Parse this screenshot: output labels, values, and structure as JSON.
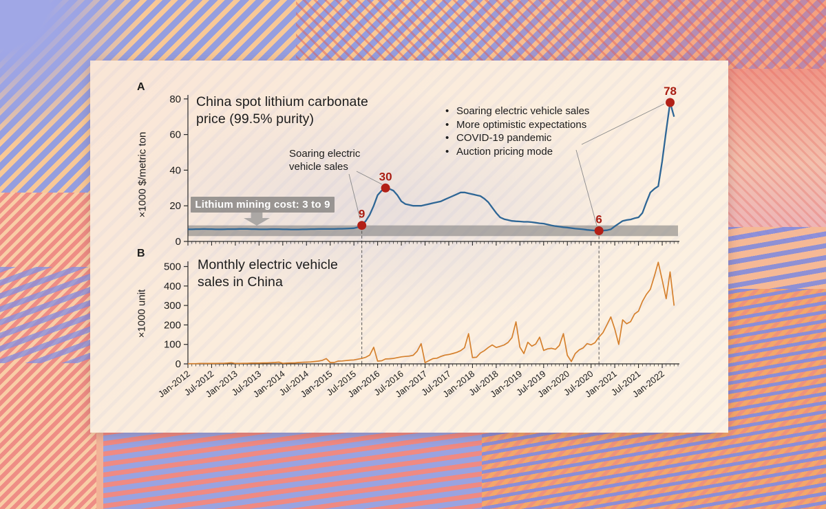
{
  "panel": {
    "label_a": "A",
    "label_b": "B"
  },
  "colors": {
    "price_line": "#2e6695",
    "ev_line": "#d5802d",
    "marker": "#b22017",
    "marker_label": "#a91d12",
    "band_fill": "rgba(120,120,120,0.55)",
    "axis": "#2a2a2a",
    "dashed_link": "#555555",
    "leader_line": "#8a8a8a",
    "text": "#1c1c1c"
  },
  "chart_data": [
    {
      "id": "lithium-price",
      "type": "line",
      "title": "China spot lithium carbonate price (99.5% purity)",
      "ylabel": "×1000 $/metric ton",
      "ylim": [
        0,
        80
      ],
      "yticks": [
        0,
        20,
        40,
        60,
        80
      ],
      "x_start": "Jan-2012",
      "x_end": "Apr-2022",
      "x_unit": "month",
      "values": [
        6.8,
        6.8,
        6.9,
        6.9,
        7.0,
        6.9,
        6.9,
        6.8,
        6.8,
        6.8,
        6.9,
        6.9,
        6.9,
        7.0,
        7.0,
        7.0,
        6.9,
        6.9,
        6.8,
        6.8,
        6.8,
        6.9,
        6.9,
        6.9,
        6.8,
        6.8,
        6.7,
        6.7,
        6.7,
        6.8,
        6.8,
        6.9,
        6.9,
        7.0,
        7.0,
        7.0,
        7.0,
        7.0,
        7.1,
        7.1,
        7.2,
        7.3,
        7.4,
        8.0,
        9.0,
        11.5,
        15.0,
        20.0,
        26.0,
        28.5,
        30.0,
        29.5,
        28.5,
        26.0,
        22.5,
        21.0,
        20.5,
        20.0,
        20.0,
        20.0,
        20.5,
        21.0,
        21.5,
        22.0,
        22.5,
        23.5,
        24.5,
        25.5,
        26.5,
        27.5,
        27.5,
        27.0,
        26.5,
        26.0,
        25.5,
        24.0,
        22.0,
        19.0,
        16.0,
        13.5,
        12.5,
        12.0,
        11.5,
        11.3,
        11.2,
        11.0,
        11.0,
        10.8,
        10.5,
        10.2,
        10.0,
        9.5,
        9.0,
        8.6,
        8.3,
        8.0,
        7.8,
        7.5,
        7.2,
        7.0,
        6.8,
        6.5,
        6.3,
        6.1,
        6.0,
        6.1,
        6.3,
        6.8,
        8.5,
        10.0,
        11.5,
        12.0,
        12.3,
        13.0,
        13.5,
        16.0,
        22.0,
        27.5,
        29.5,
        31.0,
        45.0,
        62.0,
        78.0,
        70.0
      ],
      "annotations": [
        {
          "label": "9",
          "month_index": 44,
          "value": 9
        },
        {
          "label": "30",
          "month_index": 50,
          "value": 30
        },
        {
          "label": "6",
          "month_index": 104,
          "value": 6
        },
        {
          "label": "78",
          "month_index": 122,
          "value": 78
        }
      ],
      "callout_left": "Soaring electric vehicle sales",
      "callout_right_bullets": [
        "Soaring electric vehicle sales",
        "More optimistic expectations",
        "COVID-19 pandemic",
        "Auction pricing mode"
      ],
      "band": {
        "min": 3,
        "max": 9,
        "label": "Lithium mining cost: 3 to 9"
      }
    },
    {
      "id": "ev-sales",
      "type": "line",
      "title": "Monthly electric vehicle sales in China",
      "ylabel": "×1000 unit",
      "ylim": [
        0,
        540
      ],
      "yticks": [
        0,
        100,
        200,
        300,
        400,
        500
      ],
      "xtick_labels": [
        "Jan-2012",
        "Jul-2012",
        "Jan-2013",
        "Jul-2013",
        "Jan-2014",
        "Jul-2014",
        "Jan-2015",
        "Jul-2015",
        "Jan-2016",
        "Jul-2016",
        "Jan-2017",
        "Jul-2017",
        "Jan-2018",
        "Jul-2018",
        "Jan-2019",
        "Jul-2019",
        "Jan-2020",
        "Jul-2020",
        "Jan-2021",
        "Jul-2021",
        "Jan-2022"
      ],
      "values": [
        1,
        1,
        1,
        2,
        2,
        2,
        2,
        2,
        3,
        3,
        4,
        6,
        2,
        2,
        3,
        3,
        4,
        4,
        4,
        5,
        5,
        6,
        7,
        9,
        3,
        4,
        5,
        5,
        7,
        8,
        9,
        10,
        12,
        14,
        18,
        27,
        7,
        7,
        14,
        15,
        17,
        19,
        20,
        24,
        28,
        34,
        45,
        85,
        14,
        16,
        25,
        26,
        28,
        32,
        36,
        38,
        40,
        44,
        65,
        104,
        6,
        17,
        27,
        29,
        38,
        45,
        48,
        53,
        59,
        68,
        83,
        155,
        32,
        34,
        56,
        68,
        84,
        97,
        84,
        90,
        97,
        110,
        135,
        216,
        86,
        53,
        111,
        91,
        102,
        137,
        69,
        77,
        80,
        75,
        95,
        155,
        44,
        12,
        53,
        72,
        82,
        104,
        98,
        109,
        138,
        160,
        200,
        241,
        179,
        100,
        226,
        206,
        217,
        256,
        271,
        321,
        357,
        383,
        450,
        522,
        431,
        335,
        472,
        299
      ]
    }
  ],
  "dashed_links": [
    {
      "month_index": 44
    },
    {
      "month_index": 104
    }
  ]
}
